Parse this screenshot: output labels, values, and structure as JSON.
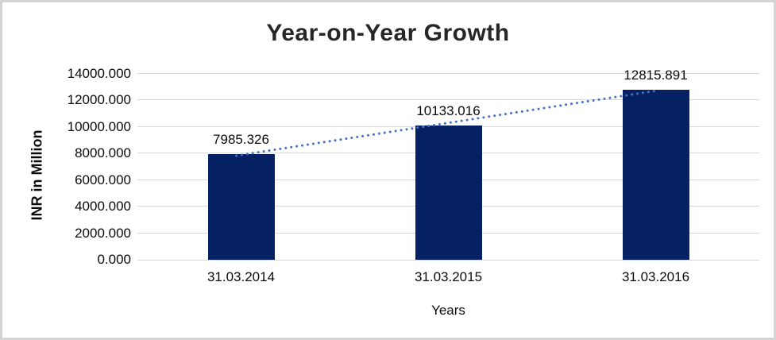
{
  "chart_data": {
    "type": "bar",
    "title": "Year-on-Year Growth",
    "xlabel": "Years",
    "ylabel": "INR in Million",
    "categories": [
      "31.03.2014",
      "31.03.2015",
      "31.03.2016"
    ],
    "values": [
      7985.326,
      10133.016,
      12815.891
    ],
    "data_labels": [
      "7985.326",
      "10133.016",
      "12815.891"
    ],
    "ylim": [
      0,
      14000
    ],
    "ytick_step": 2000,
    "ytick_labels": [
      "0.000",
      "2000.000",
      "4000.000",
      "6000.000",
      "8000.000",
      "10000.000",
      "12000.000",
      "14000.000"
    ],
    "grid": true,
    "legend": false,
    "trendline": {
      "type": "linear",
      "style": "dotted",
      "values": [
        7895.9,
        10311.4,
        12726.9
      ],
      "color": "#4472C4"
    },
    "colors": {
      "bar": "#052164",
      "gridline": "#D9D9D9",
      "title": "#262626",
      "text": "#0B0B0B",
      "border": "#D4D4D4",
      "background": "#FFFFFF"
    }
  }
}
